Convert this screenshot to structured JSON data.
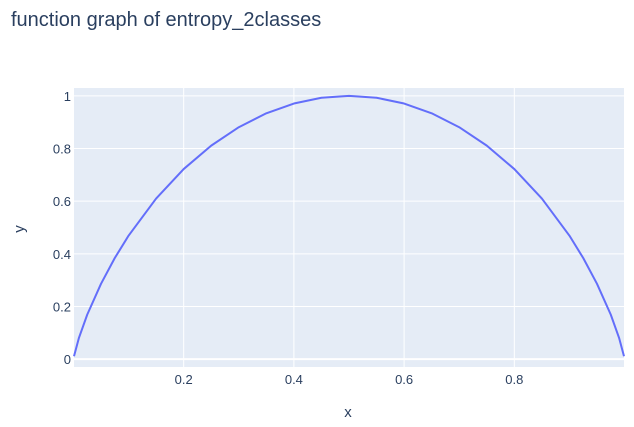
{
  "chart_data": {
    "type": "line",
    "title": "function graph of entropy_2classes",
    "xlabel": "x",
    "ylabel": "y",
    "xlim": [
      0.001,
      0.999
    ],
    "ylim": [
      -0.03,
      1.03
    ],
    "xticks": [
      0.2,
      0.4,
      0.6,
      0.8
    ],
    "xtick_labels": [
      "0.2",
      "0.4",
      "0.6",
      "0.8"
    ],
    "yticks": [
      0,
      0.2,
      0.4,
      0.6,
      0.8,
      1
    ],
    "ytick_labels": [
      "0",
      "0.2",
      "0.4",
      "0.6",
      "0.8",
      "1"
    ],
    "grid": true,
    "legend": "none",
    "colors": {
      "line": "#636efa",
      "plot_bg": "#e5ecf6",
      "grid": "#ffffff",
      "text": "#2a3f5f"
    },
    "series": [
      {
        "x": [
          0.001,
          0.01,
          0.025,
          0.05,
          0.075,
          0.1,
          0.15,
          0.2,
          0.25,
          0.3,
          0.35,
          0.4,
          0.45,
          0.5,
          0.55,
          0.6,
          0.65,
          0.7,
          0.75,
          0.8,
          0.85,
          0.9,
          0.925,
          0.95,
          0.975,
          0.99,
          0.999
        ],
        "y": [
          0.011,
          0.081,
          0.169,
          0.286,
          0.384,
          0.469,
          0.61,
          0.722,
          0.811,
          0.881,
          0.934,
          0.971,
          0.993,
          1.0,
          0.993,
          0.971,
          0.934,
          0.881,
          0.811,
          0.722,
          0.61,
          0.469,
          0.384,
          0.286,
          0.169,
          0.081,
          0.011
        ]
      }
    ]
  }
}
